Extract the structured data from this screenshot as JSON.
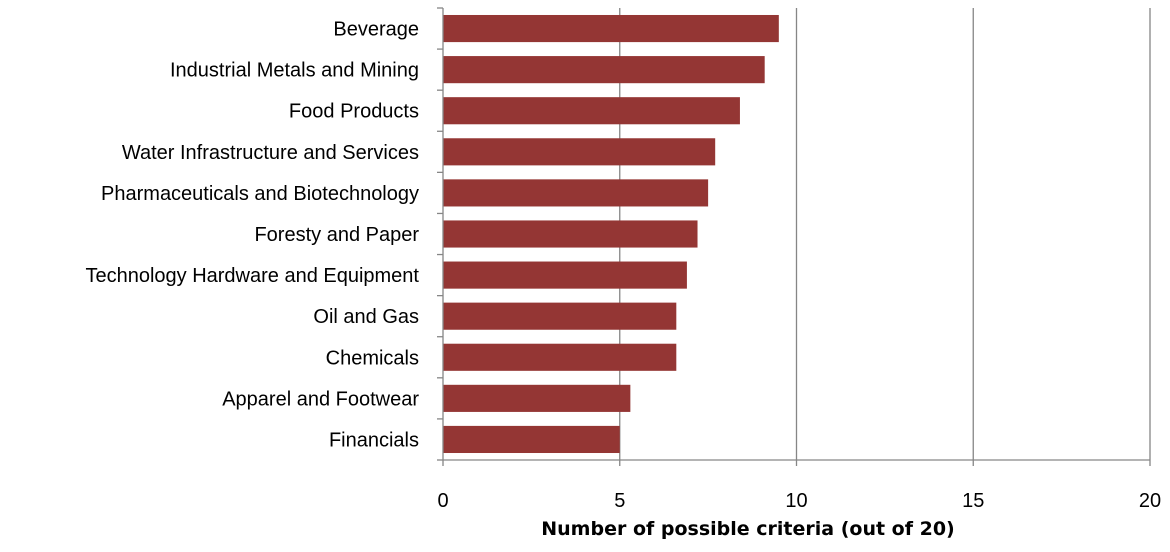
{
  "chart_data": {
    "type": "bar",
    "orientation": "horizontal",
    "categories": [
      "Beverage",
      "Industrial Metals and Mining",
      "Food Products",
      "Water Infrastructure and Services",
      "Pharmaceuticals and Biotechnology",
      "Foresty and Paper",
      "Technology Hardware and Equipment",
      "Oil and Gas",
      "Chemicals",
      "Apparel and Footwear",
      "Financials"
    ],
    "values": [
      9.5,
      9.1,
      8.4,
      7.7,
      7.5,
      7.2,
      6.9,
      6.6,
      6.6,
      5.3,
      5.0
    ],
    "xlabel": "Number of possible criteria (out of 20)",
    "ylabel": "",
    "xlim": [
      0,
      20
    ],
    "xticks": [
      0,
      5,
      10,
      15,
      20
    ],
    "xtick_labels": [
      "0",
      "5",
      "10",
      "15",
      "20"
    ],
    "grid": "vertical",
    "legend": "none",
    "bar_color": "#943634",
    "gridline_color": "#868686"
  }
}
